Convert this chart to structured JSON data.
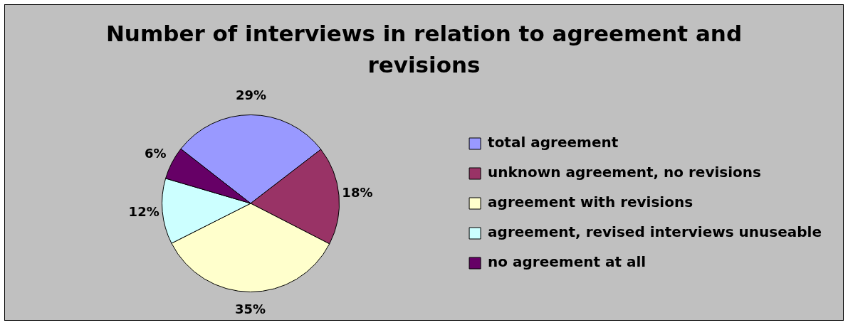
{
  "chart_data": {
    "type": "pie",
    "title": "Number of interviews in relation to agreement and revisions",
    "categories": [
      "total agreement",
      "unknown agreement, no revisions",
      "agreement with revisions",
      "agreement, revised interviews unuseable",
      "no agreement at all"
    ],
    "values": [
      29,
      18,
      35,
      12,
      6
    ],
    "colors": [
      "#9999ff",
      "#993366",
      "#ffffcc",
      "#ccffff",
      "#660066"
    ],
    "value_labels": [
      "29%",
      "18%",
      "35%",
      "12%",
      "6%"
    ],
    "legend": "right"
  }
}
